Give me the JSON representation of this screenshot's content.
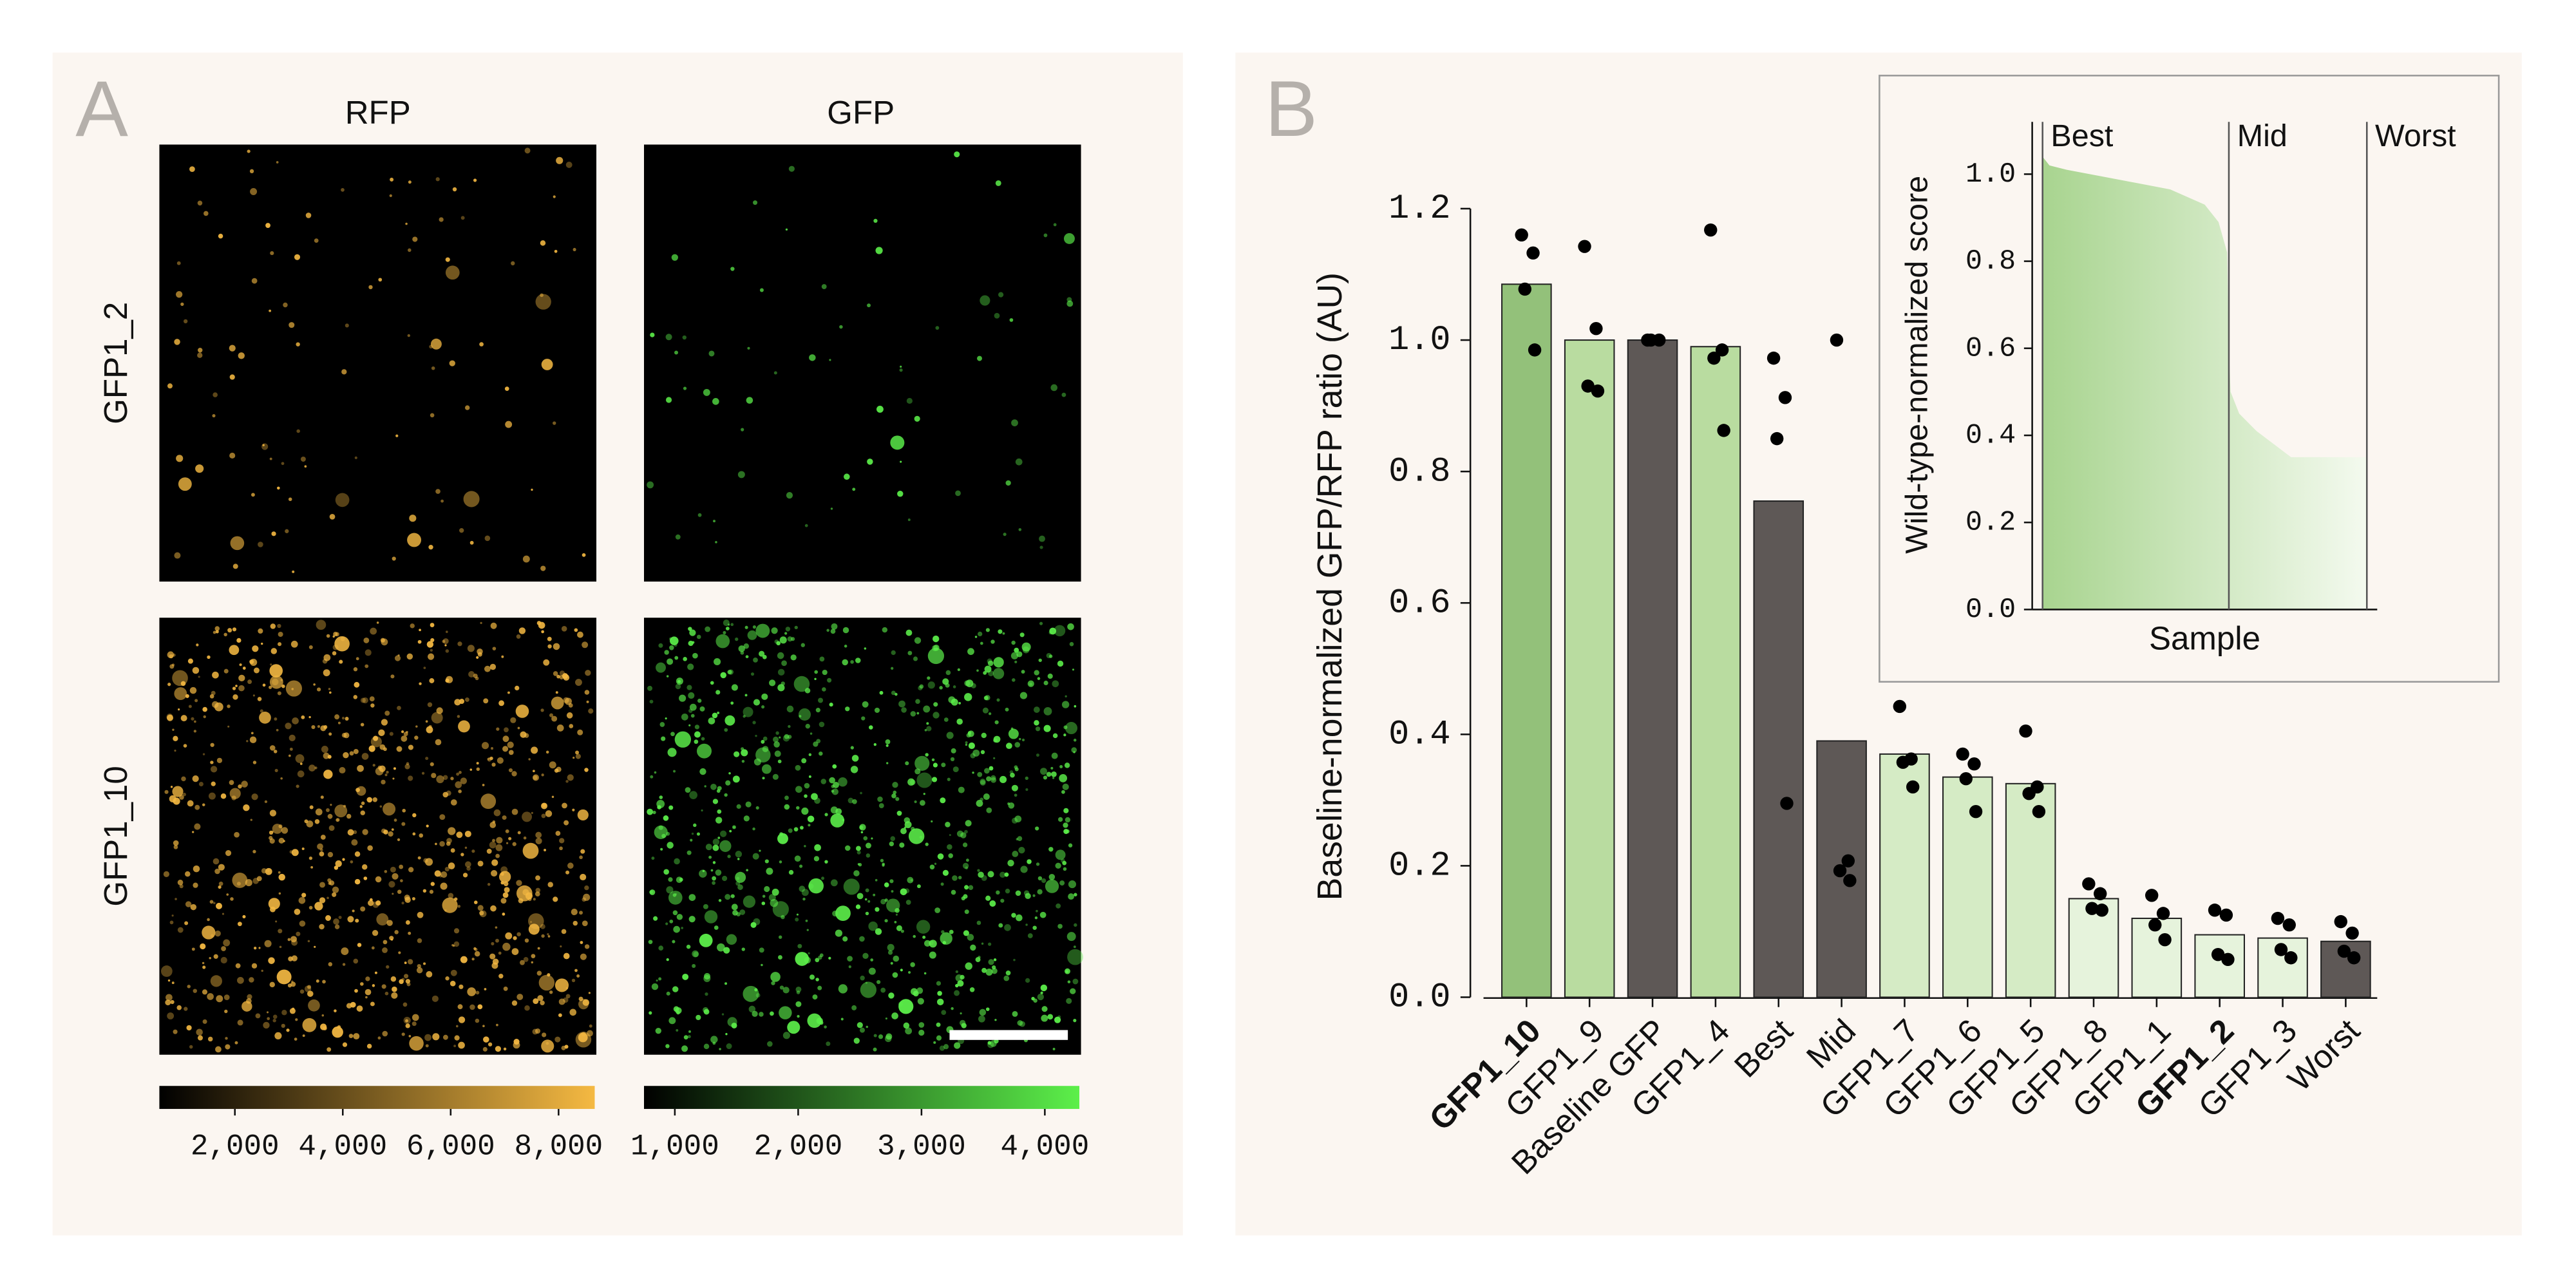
{
  "microscopy": {
    "panel": "A",
    "columns": [
      "RFP",
      "GFP"
    ],
    "rows": [
      "GFP1_2",
      "GFP1_10"
    ]
  },
  "panel_b": "B",
  "chart_data": [
    {
      "type": "colorbar",
      "colors": [
        "#000000",
        "#f5b942"
      ],
      "xlim": [
        600,
        8670
      ],
      "xticks": [
        {
          "value": 2000,
          "label": "2,000"
        },
        {
          "value": 4000,
          "label": "4,000"
        },
        {
          "value": 6000,
          "label": "6,000"
        },
        {
          "value": 8000,
          "label": "8,000"
        }
      ]
    },
    {
      "type": "colorbar",
      "colors": [
        "#000000",
        "#5cf04a"
      ],
      "xlim": [
        750,
        4280
      ],
      "xticks": [
        {
          "value": 1000,
          "label": "1,000"
        },
        {
          "value": 2000,
          "label": "2,000"
        },
        {
          "value": 3000,
          "label": "3,000"
        },
        {
          "value": 4000,
          "label": "4,000"
        }
      ]
    },
    {
      "type": "bar",
      "y_label": "Baseline-normalized GFP/RFP ratio (AU)",
      "categories": [
        "GFP1_10",
        "GFP1_9",
        "Baseline GFP",
        "GFP1_4",
        "Best",
        "Mid",
        "GFP1_7",
        "GFP1_6",
        "GFP1_5",
        "GFP1_8",
        "GFP1_1",
        "GFP1_2",
        "GFP1_3",
        "Worst"
      ],
      "bold": [
        true,
        false,
        false,
        false,
        false,
        false,
        false,
        false,
        false,
        false,
        false,
        true,
        false,
        false
      ],
      "values": [
        1.085,
        1.0,
        1.0,
        0.99,
        0.755,
        0.39,
        0.37,
        0.335,
        0.325,
        0.15,
        0.12,
        0.095,
        0.09,
        0.085
      ],
      "colors": [
        "#93c17a",
        "#b9dca0",
        "#5e5856",
        "#b9dca0",
        "#5e5856",
        "#5e5856",
        "#d5ebc5",
        "#d5ebc5",
        "#d5ebc5",
        "#e6f3dc",
        "#e6f3dc",
        "#e6f3dc",
        "#e6f3dc",
        "#5e5856"
      ],
      "replicates": [
        [
          1.16,
          1.1325,
          1.0775,
          0.985
        ],
        [
          1.1425,
          1.0175,
          0.93,
          0.9225
        ],
        [
          1.0,
          1.0,
          1.0
        ],
        [
          1.1675,
          0.985,
          0.9725,
          0.8625
        ],
        [
          0.9725,
          0.9125,
          0.85,
          0.295
        ],
        [
          1.0,
          0.2075,
          0.1925,
          0.1775
        ],
        [
          0.4425,
          0.3625,
          0.3575,
          0.32
        ],
        [
          0.37,
          0.355,
          0.3325,
          0.2825
        ],
        [
          0.405,
          0.32,
          0.31,
          0.2825
        ],
        [
          0.1725,
          0.1575,
          0.135,
          0.1325
        ],
        [
          0.155,
          0.1275,
          0.11,
          0.0875
        ],
        [
          0.1325,
          0.125,
          0.065,
          0.0575
        ],
        [
          0.12,
          0.11,
          0.0725,
          0.06
        ],
        [
          0.115,
          0.0975,
          0.07,
          0.06
        ]
      ],
      "ylim": [
        0,
        1.2
      ],
      "yticks": [
        {
          "value": 0,
          "label": "0.0"
        },
        {
          "value": 0.2,
          "label": "0.2"
        },
        {
          "value": 0.4,
          "label": "0.4"
        },
        {
          "value": 0.6,
          "label": "0.6"
        },
        {
          "value": 0.8,
          "label": "0.8"
        },
        {
          "value": 1.0,
          "label": "1.0"
        },
        {
          "value": 1.2,
          "label": "1.2"
        }
      ]
    },
    {
      "type": "area",
      "x_label": "Sample",
      "y_label": "Wild-type-normalized score",
      "color": "#a8d48f",
      "x": [
        3,
        5,
        10,
        20,
        30,
        40,
        50,
        54,
        56.5,
        57,
        57.5,
        60,
        65,
        70,
        75,
        85,
        97
      ],
      "values": [
        1.04,
        1.02,
        1.01,
        0.995,
        0.98,
        0.965,
        0.93,
        0.89,
        0.82,
        0.6,
        0.5,
        0.45,
        0.41,
        0.38,
        0.35,
        0.35,
        0.35
      ],
      "regions": [
        "Best",
        "Mid",
        "Worst"
      ],
      "region_starts": [
        3,
        57,
        97
      ],
      "xlim": [
        0,
        100
      ],
      "ylim": [
        0,
        1.12
      ],
      "yticks": [
        {
          "value": 0,
          "label": "0.0"
        },
        {
          "value": 0.2,
          "label": "0.2"
        },
        {
          "value": 0.4,
          "label": "0.4"
        },
        {
          "value": 0.6,
          "label": "0.6"
        },
        {
          "value": 0.8,
          "label": "0.8"
        },
        {
          "value": 1.0,
          "label": "1.0"
        }
      ]
    }
  ]
}
